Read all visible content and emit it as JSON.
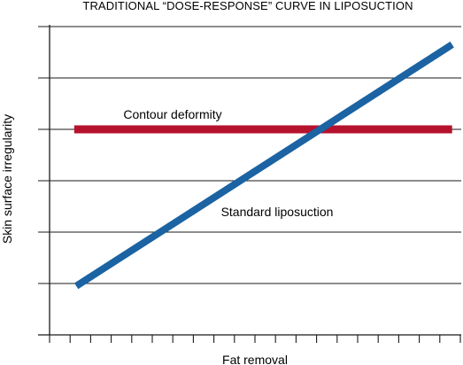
{
  "chart_data": {
    "type": "line",
    "title": "TRADITIONAL “DOSE-RESPONSE” CURVE IN LIPOSUCTION",
    "xlabel": "Fat removal",
    "ylabel": "Skin surface irregularity",
    "xlim": [
      0,
      20
    ],
    "ylim": [
      0,
      6
    ],
    "x_ticks": [
      0,
      1,
      2,
      3,
      4,
      5,
      6,
      7,
      8,
      9,
      10,
      11,
      12,
      13,
      14,
      15,
      16,
      17,
      18,
      19,
      20
    ],
    "y_ticks": [
      0,
      1,
      2,
      3,
      4,
      5,
      6
    ],
    "tick_labels_shown": false,
    "grid": "horizontal",
    "legend": "none",
    "series": [
      {
        "name": "Contour deformity",
        "color": "#b5122d",
        "x": [
          1.2,
          19.6
        ],
        "y": [
          4,
          4
        ]
      },
      {
        "name": "Standard liposuction",
        "color": "#1b63a3",
        "x": [
          1.3,
          19.6
        ],
        "y": [
          0.95,
          5.65
        ]
      }
    ]
  }
}
